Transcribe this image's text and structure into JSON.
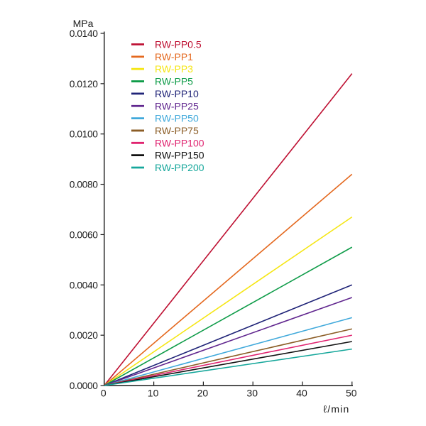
{
  "background": "#ffffff",
  "axis_color": "#1a1a1a",
  "chart_data": {
    "type": "line",
    "title": "",
    "xlabel": "ℓ/min",
    "ylabel": "MPa",
    "xlim": [
      0,
      50
    ],
    "ylim": [
      0,
      0.014
    ],
    "x_ticks": [
      0,
      10,
      20,
      30,
      40,
      50
    ],
    "x_tick_labels": [
      "0",
      "10",
      "20",
      "30",
      "40",
      "50"
    ],
    "y_ticks": [
      0.0,
      0.002,
      0.004,
      0.006,
      0.008,
      0.01,
      0.012,
      0.014
    ],
    "y_tick_labels": [
      "0.0000",
      "0.0020",
      "0.0040",
      "0.0060",
      "0.0080",
      "0.0100",
      "0.0120",
      "0.0140"
    ],
    "grid": false,
    "legend_position": "top-left-inside",
    "x": [
      0,
      50
    ],
    "series": [
      {
        "name": "RW-PP0.5",
        "color": "#BE1032",
        "values": [
          0,
          0.0124
        ]
      },
      {
        "name": "RW-PP1",
        "color": "#E4681E",
        "values": [
          0,
          0.0084
        ]
      },
      {
        "name": "RW-PP3",
        "color": "#F5E614",
        "values": [
          0,
          0.0067
        ]
      },
      {
        "name": "RW-PP5",
        "color": "#0F9C49",
        "values": [
          0,
          0.0055
        ]
      },
      {
        "name": "RW-PP10",
        "color": "#202478",
        "values": [
          0,
          0.004
        ]
      },
      {
        "name": "RW-PP25",
        "color": "#61278F",
        "values": [
          0,
          0.0035
        ]
      },
      {
        "name": "RW-PP50",
        "color": "#40A9DB",
        "values": [
          0,
          0.0027
        ]
      },
      {
        "name": "RW-PP75",
        "color": "#8B5D26",
        "values": [
          0,
          0.00225
        ]
      },
      {
        "name": "RW-PP100",
        "color": "#E02470",
        "values": [
          0,
          0.002
        ]
      },
      {
        "name": "RW-PP150",
        "color": "#111111",
        "values": [
          0,
          0.00175
        ]
      },
      {
        "name": "RW-PP200",
        "color": "#16A79B",
        "values": [
          0,
          0.00145
        ]
      }
    ]
  }
}
